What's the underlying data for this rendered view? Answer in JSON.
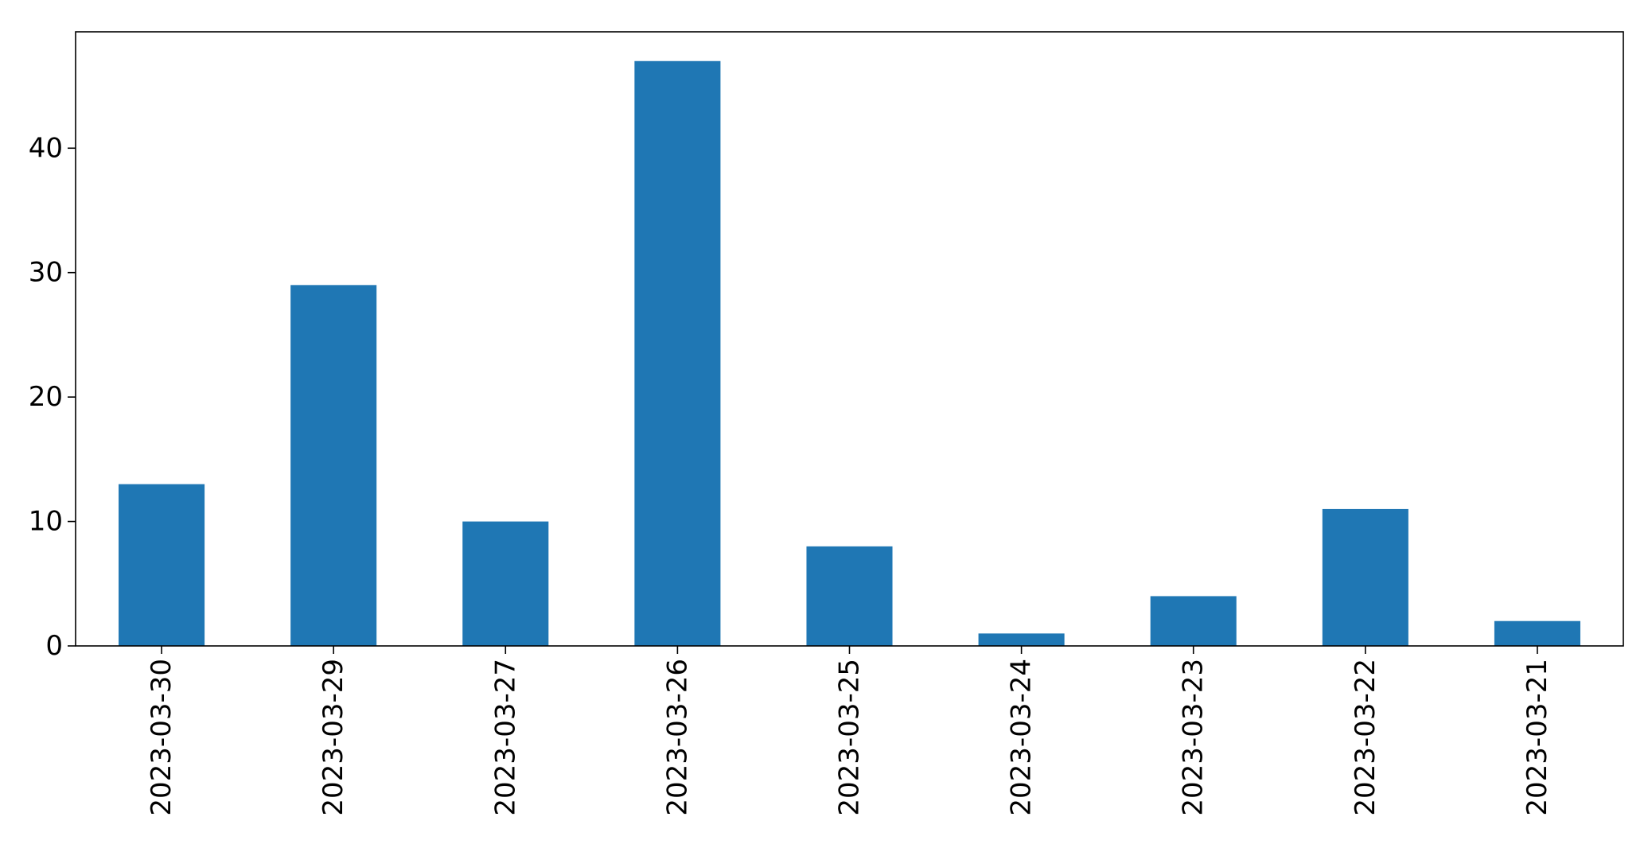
{
  "chart_data": {
    "type": "bar",
    "title": "",
    "xlabel": "",
    "ylabel": "",
    "categories": [
      "2023-03-30",
      "2023-03-29",
      "2023-03-27",
      "2023-03-26",
      "2023-03-25",
      "2023-03-24",
      "2023-03-23",
      "2023-03-22",
      "2023-03-21"
    ],
    "values": [
      13,
      29,
      10,
      47,
      8,
      1,
      4,
      11,
      2
    ],
    "ylim": [
      0,
      49.35
    ],
    "yticks": [
      0,
      10,
      20,
      30,
      40
    ],
    "bar_color": "#1f77b4",
    "grid": false,
    "legend": "none",
    "x_tick_rotation": "vertical"
  }
}
